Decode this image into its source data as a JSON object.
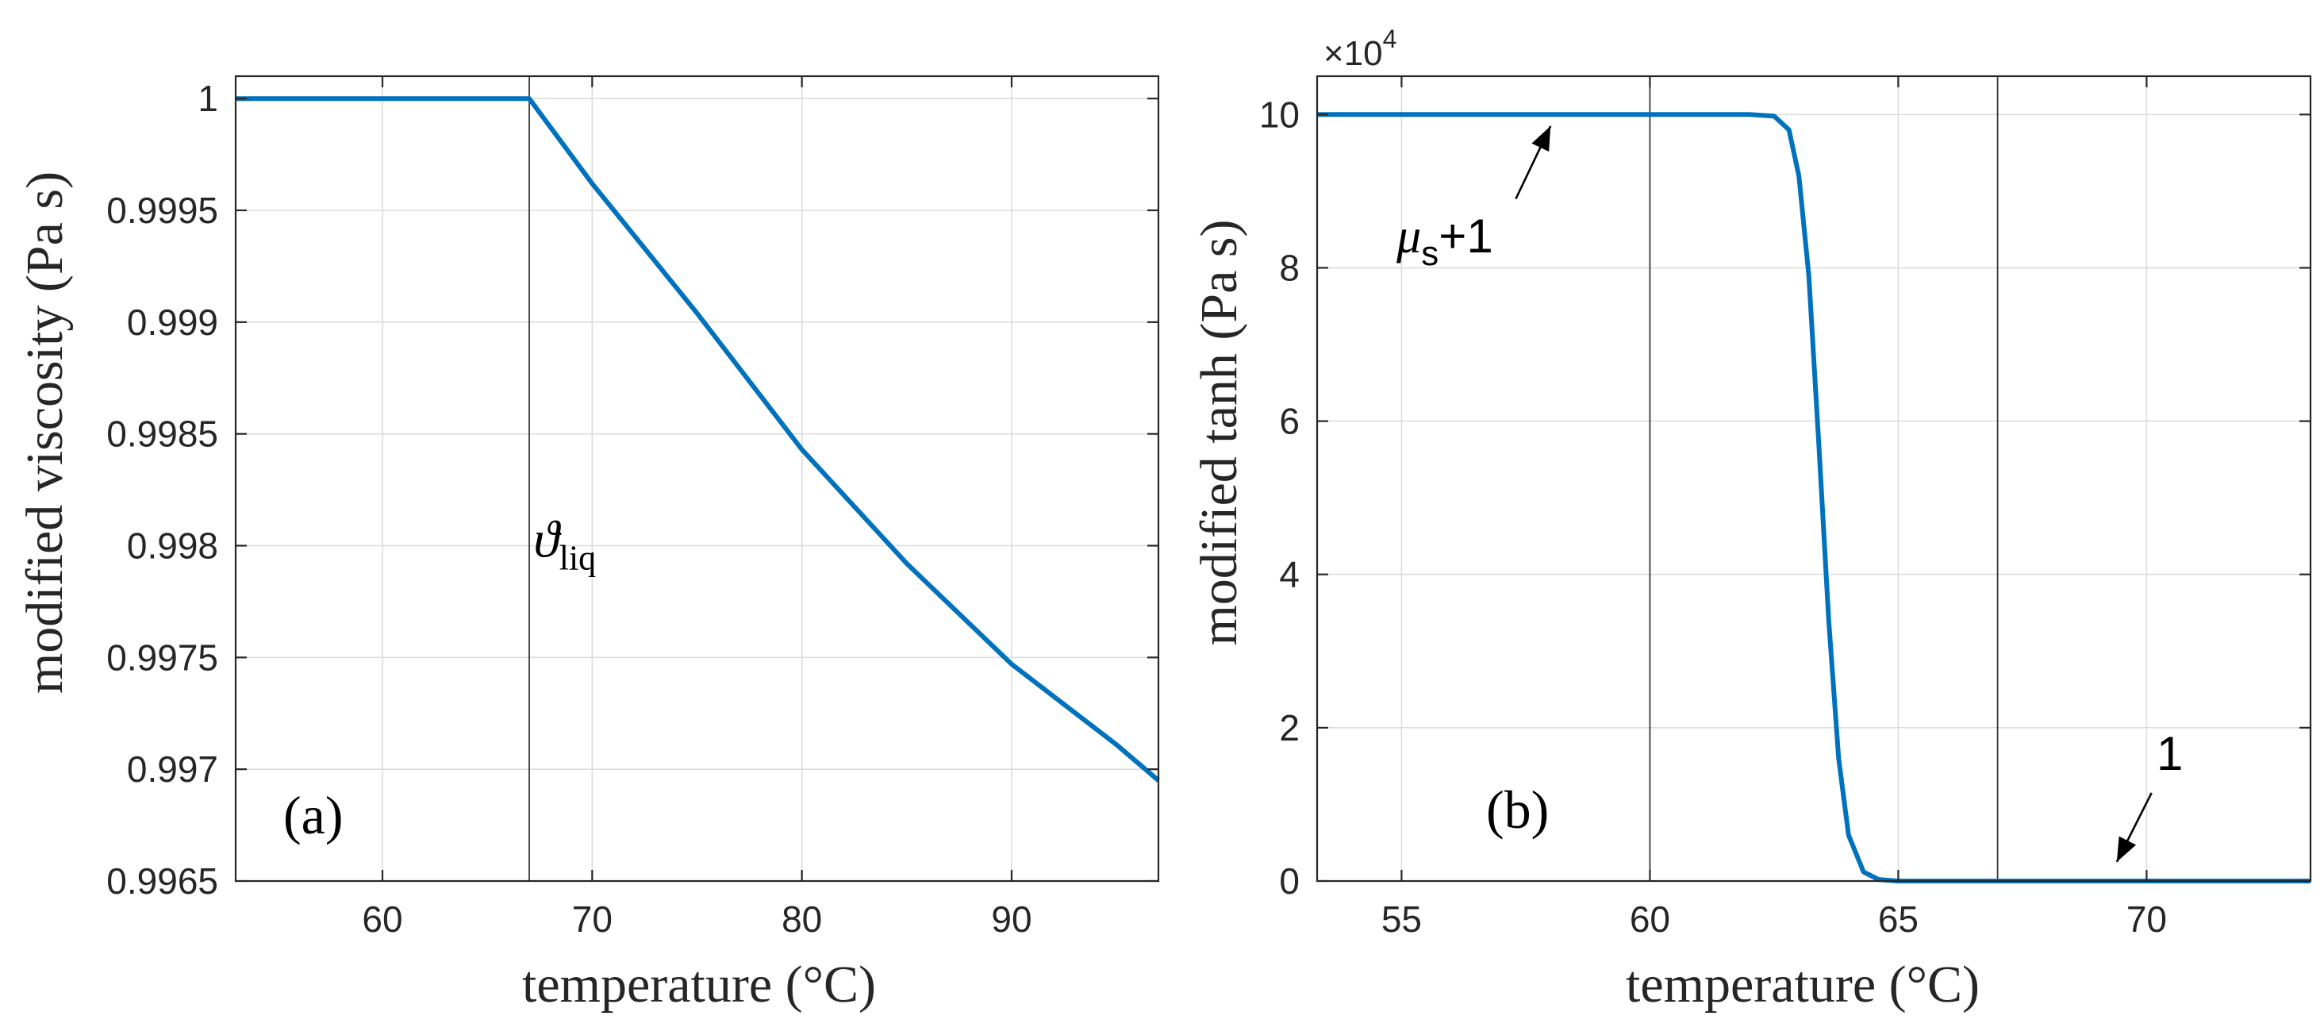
{
  "chart_data": [
    {
      "type": "line",
      "panel_label": "(a)",
      "xlabel": "temperature (°C)",
      "ylabel": "modified viscosity (Pa s)",
      "xlim": [
        53,
        97
      ],
      "ylim": [
        0.9965,
        1.0001
      ],
      "xticks": [
        60,
        70,
        80,
        90
      ],
      "xtick_labels": [
        "60",
        "70",
        "80",
        "90"
      ],
      "yticks": [
        0.9965,
        0.997,
        0.9975,
        0.998,
        0.9985,
        0.999,
        0.9995,
        1
      ],
      "ytick_labels": [
        "0.9965",
        "0.997",
        "0.9975",
        "0.998",
        "0.9985",
        "0.999",
        "0.9995",
        "1"
      ],
      "grid": true,
      "vertical_line_x": 67,
      "annotation": {
        "base": "ϑ",
        "sub": "liq",
        "x": 67.2,
        "y": 0.99795
      },
      "series": [
        {
          "name": "viscosity",
          "color": "#0072BD",
          "x": [
            53,
            67,
            70,
            75,
            80,
            85,
            90,
            95,
            97
          ],
          "y": [
            1.0,
            1.0,
            0.99962,
            0.99904,
            0.99843,
            0.99792,
            0.99747,
            0.99711,
            0.99695
          ]
        }
      ]
    },
    {
      "type": "line",
      "panel_label": "(b)",
      "xlabel": "temperature (°C)",
      "ylabel": "modified tanh (Pa s)",
      "exponent": {
        "base": "×10",
        "power": "4"
      },
      "xlim": [
        53.3,
        73.3
      ],
      "ylim": [
        0,
        10.5
      ],
      "xticks": [
        55,
        60,
        65,
        70
      ],
      "xtick_labels": [
        "55",
        "60",
        "65",
        "70"
      ],
      "yticks": [
        0,
        2,
        4,
        6,
        8,
        10
      ],
      "ytick_labels": [
        "0",
        "2",
        "4",
        "6",
        "8",
        "10"
      ],
      "grid": true,
      "vertical_lines_x": [
        60,
        67
      ],
      "annotations": [
        {
          "symbol": "μ",
          "sub": "s",
          "suffix": "+1",
          "text_at": [
            54.9,
            8.2
          ],
          "arrow_from": [
            57.3,
            8.9
          ],
          "arrow_to": [
            58.0,
            9.85
          ]
        },
        {
          "text": "1",
          "text_at": [
            70.2,
            1.45
          ],
          "arrow_from": [
            70.1,
            1.15
          ],
          "arrow_to": [
            69.4,
            0.25
          ]
        }
      ],
      "series": [
        {
          "name": "modified tanh",
          "color": "#0072BD",
          "x": [
            53.3,
            62.0,
            62.5,
            62.8,
            63.0,
            63.2,
            63.4,
            63.6,
            63.8,
            64.0,
            64.3,
            64.6,
            65.0,
            73.3
          ],
          "y": [
            10.0,
            10.0,
            9.98,
            9.8,
            9.2,
            7.9,
            5.7,
            3.4,
            1.6,
            0.6,
            0.12,
            0.02,
            0.0,
            0.0
          ]
        }
      ]
    }
  ]
}
